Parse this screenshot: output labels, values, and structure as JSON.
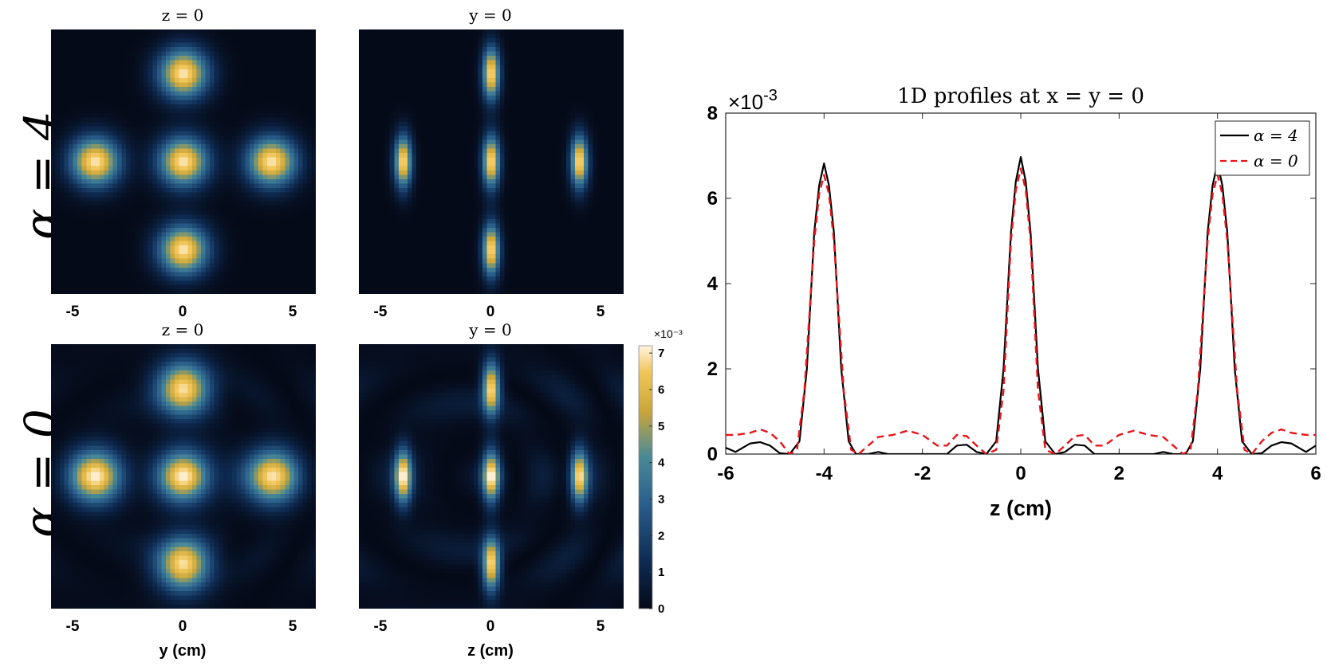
{
  "chart_data": [
    {
      "type": "heatmap",
      "panel": "top-left",
      "row_label": "α = 4",
      "title": "z = 0",
      "xlabel": "",
      "x_ticks": [
        "-5",
        "0",
        "5"
      ],
      "xlim": [
        -6,
        6
      ],
      "spots": [
        {
          "x": 0,
          "y": 4,
          "peak": 7.0,
          "sx": 0.8,
          "sy": 0.8
        },
        {
          "x": -4,
          "y": 0,
          "peak": 7.0,
          "sx": 0.8,
          "sy": 0.8
        },
        {
          "x": 0,
          "y": 0,
          "peak": 7.0,
          "sx": 0.8,
          "sy": 0.8
        },
        {
          "x": 4,
          "y": 0,
          "peak": 7.0,
          "sx": 0.8,
          "sy": 0.8
        },
        {
          "x": 0,
          "y": -4,
          "peak": 7.0,
          "sx": 0.8,
          "sy": 0.8
        }
      ],
      "background": 0.0
    },
    {
      "type": "heatmap",
      "panel": "top-right",
      "title": "y = 0",
      "xlabel": "",
      "x_ticks": [
        "-5",
        "0",
        "5"
      ],
      "xlim": [
        -6,
        6
      ],
      "spots": [
        {
          "x": 0,
          "y": 4,
          "peak": 7.0,
          "sx": 0.28,
          "sy": 0.85
        },
        {
          "x": -4,
          "y": 0,
          "peak": 7.0,
          "sx": 0.28,
          "sy": 0.85
        },
        {
          "x": 0,
          "y": 0,
          "peak": 7.0,
          "sx": 0.28,
          "sy": 0.85
        },
        {
          "x": 4,
          "y": 0,
          "peak": 7.0,
          "sx": 0.28,
          "sy": 0.85
        },
        {
          "x": 0,
          "y": -4,
          "peak": 7.0,
          "sx": 0.28,
          "sy": 0.85
        }
      ],
      "background": 0.0
    },
    {
      "type": "heatmap",
      "panel": "bottom-left",
      "row_label": "α = 0",
      "title": "z = 0",
      "xlabel": "y (cm)",
      "x_ticks": [
        "-5",
        "0",
        "5"
      ],
      "xlim": [
        -6,
        6
      ],
      "spots": [
        {
          "x": 0,
          "y": 4,
          "peak": 6.8,
          "sx": 0.85,
          "sy": 0.85
        },
        {
          "x": -4,
          "y": 0,
          "peak": 6.8,
          "sx": 0.85,
          "sy": 0.85
        },
        {
          "x": 0,
          "y": 0,
          "peak": 6.8,
          "sx": 0.85,
          "sy": 0.85
        },
        {
          "x": 4,
          "y": 0,
          "peak": 6.8,
          "sx": 0.85,
          "sy": 0.85
        },
        {
          "x": 0,
          "y": -4,
          "peak": 6.8,
          "sx": 0.85,
          "sy": 0.85
        }
      ],
      "background": 0.4
    },
    {
      "type": "heatmap",
      "panel": "bottom-right",
      "title": "y = 0",
      "xlabel": "z (cm)",
      "x_ticks": [
        "-5",
        "0",
        "5"
      ],
      "xlim": [
        -6,
        6
      ],
      "spots": [
        {
          "x": 0,
          "y": 4,
          "peak": 6.8,
          "sx": 0.28,
          "sy": 0.85
        },
        {
          "x": -4,
          "y": 0,
          "peak": 6.8,
          "sx": 0.28,
          "sy": 0.85
        },
        {
          "x": 0,
          "y": 0,
          "peak": 6.8,
          "sx": 0.28,
          "sy": 0.85
        },
        {
          "x": 4,
          "y": 0,
          "peak": 6.8,
          "sx": 0.28,
          "sy": 0.85
        },
        {
          "x": 0,
          "y": -4,
          "peak": 6.8,
          "sx": 0.28,
          "sy": 0.85
        }
      ],
      "background": 0.8
    },
    {
      "type": "colorbar",
      "exponent_label": "×10⁻³",
      "ticks": [
        "0",
        "1",
        "2",
        "3",
        "4",
        "5",
        "6",
        "7"
      ],
      "range": [
        0,
        7.2
      ]
    },
    {
      "type": "line",
      "title": "1D profiles at x = y = 0",
      "xlabel": "z (cm)",
      "ylabel": "",
      "exponent_label": "×10",
      "exponent_power": "-3",
      "xlim": [
        -6,
        6
      ],
      "ylim": [
        0,
        8
      ],
      "x_ticks": [
        "-6",
        "-4",
        "-2",
        "0",
        "2",
        "4",
        "6"
      ],
      "y_ticks": [
        "0",
        "2",
        "4",
        "6",
        "8"
      ],
      "legend_position": "top-right",
      "series": [
        {
          "name": "α = 4",
          "color": "#000000",
          "dash": "solid",
          "points": [
            [
              -6.0,
              0.15
            ],
            [
              -5.8,
              0.05
            ],
            [
              -5.5,
              0.25
            ],
            [
              -5.3,
              0.28
            ],
            [
              -5.1,
              0.2
            ],
            [
              -4.9,
              0.02
            ],
            [
              -4.7,
              0.0
            ],
            [
              -4.5,
              0.3
            ],
            [
              -4.35,
              2.0
            ],
            [
              -4.2,
              5.2
            ],
            [
              -4.1,
              6.3
            ],
            [
              -4.0,
              6.82
            ],
            [
              -3.9,
              6.3
            ],
            [
              -3.8,
              5.2
            ],
            [
              -3.65,
              2.0
            ],
            [
              -3.5,
              0.3
            ],
            [
              -3.35,
              0.0
            ],
            [
              -3.1,
              0.0
            ],
            [
              -2.9,
              0.05
            ],
            [
              -2.7,
              0.0
            ],
            [
              -2.0,
              0.0
            ],
            [
              -1.5,
              0.0
            ],
            [
              -1.3,
              0.2
            ],
            [
              -1.1,
              0.22
            ],
            [
              -0.9,
              0.05
            ],
            [
              -0.7,
              0.0
            ],
            [
              -0.5,
              0.3
            ],
            [
              -0.35,
              2.0
            ],
            [
              -0.2,
              5.2
            ],
            [
              -0.1,
              6.4
            ],
            [
              0.0,
              6.97
            ],
            [
              0.1,
              6.4
            ],
            [
              0.2,
              5.2
            ],
            [
              0.35,
              2.0
            ],
            [
              0.5,
              0.3
            ],
            [
              0.7,
              0.0
            ],
            [
              0.9,
              0.05
            ],
            [
              1.1,
              0.22
            ],
            [
              1.3,
              0.2
            ],
            [
              1.5,
              0.0
            ],
            [
              2.0,
              0.0
            ],
            [
              2.7,
              0.0
            ],
            [
              2.9,
              0.05
            ],
            [
              3.1,
              0.0
            ],
            [
              3.35,
              0.0
            ],
            [
              3.5,
              0.3
            ],
            [
              3.65,
              2.0
            ],
            [
              3.8,
              5.2
            ],
            [
              3.9,
              6.3
            ],
            [
              4.0,
              6.82
            ],
            [
              4.1,
              6.3
            ],
            [
              4.2,
              5.2
            ],
            [
              4.35,
              2.0
            ],
            [
              4.5,
              0.3
            ],
            [
              4.7,
              0.0
            ],
            [
              4.9,
              0.02
            ],
            [
              5.1,
              0.2
            ],
            [
              5.3,
              0.28
            ],
            [
              5.5,
              0.25
            ],
            [
              5.8,
              0.05
            ],
            [
              6.0,
              0.2
            ]
          ]
        },
        {
          "name": "α = 0",
          "color": "#e8151b",
          "dash": "dashed",
          "points": [
            [
              -6.0,
              0.45
            ],
            [
              -5.8,
              0.45
            ],
            [
              -5.5,
              0.5
            ],
            [
              -5.3,
              0.58
            ],
            [
              -5.1,
              0.5
            ],
            [
              -4.9,
              0.3
            ],
            [
              -4.7,
              0.0
            ],
            [
              -4.55,
              0.1
            ],
            [
              -4.4,
              1.5
            ],
            [
              -4.2,
              5.0
            ],
            [
              -4.1,
              6.1
            ],
            [
              -4.0,
              6.55
            ],
            [
              -3.9,
              6.1
            ],
            [
              -3.8,
              5.0
            ],
            [
              -3.6,
              1.5
            ],
            [
              -3.45,
              0.1
            ],
            [
              -3.3,
              0.0
            ],
            [
              -3.1,
              0.2
            ],
            [
              -2.9,
              0.4
            ],
            [
              -2.6,
              0.45
            ],
            [
              -2.3,
              0.55
            ],
            [
              -2.0,
              0.45
            ],
            [
              -1.7,
              0.2
            ],
            [
              -1.5,
              0.2
            ],
            [
              -1.3,
              0.45
            ],
            [
              -1.1,
              0.42
            ],
            [
              -0.9,
              0.2
            ],
            [
              -0.7,
              0.0
            ],
            [
              -0.5,
              0.1
            ],
            [
              -0.35,
              1.5
            ],
            [
              -0.2,
              5.0
            ],
            [
              -0.1,
              6.2
            ],
            [
              0.0,
              6.7
            ],
            [
              0.1,
              6.2
            ],
            [
              0.2,
              5.0
            ],
            [
              0.35,
              1.5
            ],
            [
              0.5,
              0.1
            ],
            [
              0.7,
              0.0
            ],
            [
              0.9,
              0.2
            ],
            [
              1.1,
              0.42
            ],
            [
              1.3,
              0.45
            ],
            [
              1.5,
              0.2
            ],
            [
              1.7,
              0.2
            ],
            [
              2.0,
              0.45
            ],
            [
              2.3,
              0.55
            ],
            [
              2.6,
              0.45
            ],
            [
              2.9,
              0.4
            ],
            [
              3.1,
              0.2
            ],
            [
              3.3,
              0.0
            ],
            [
              3.45,
              0.1
            ],
            [
              3.6,
              1.5
            ],
            [
              3.8,
              5.0
            ],
            [
              3.9,
              6.1
            ],
            [
              4.0,
              6.55
            ],
            [
              4.1,
              6.1
            ],
            [
              4.2,
              5.0
            ],
            [
              4.4,
              1.5
            ],
            [
              4.55,
              0.1
            ],
            [
              4.7,
              0.0
            ],
            [
              4.9,
              0.3
            ],
            [
              5.1,
              0.5
            ],
            [
              5.3,
              0.58
            ],
            [
              5.5,
              0.5
            ],
            [
              5.8,
              0.45
            ],
            [
              6.0,
              0.45
            ]
          ]
        }
      ]
    }
  ]
}
